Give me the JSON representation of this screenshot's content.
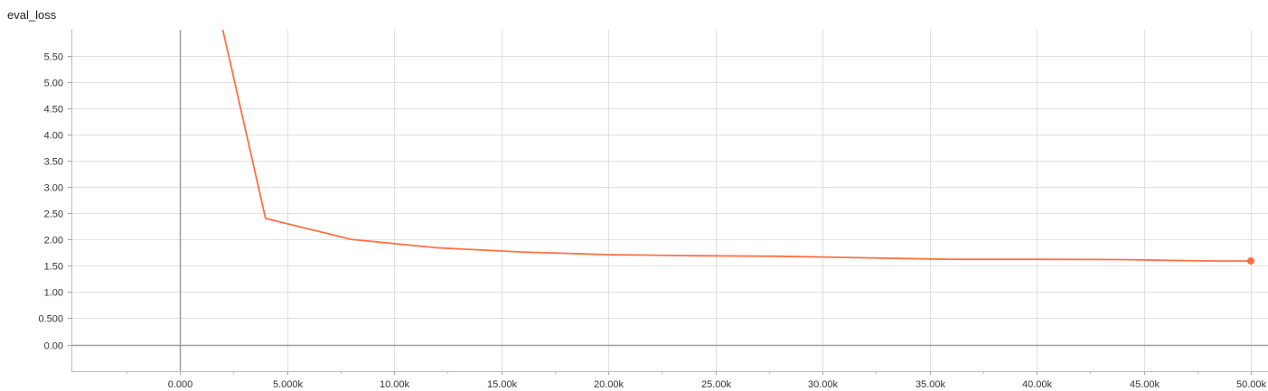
{
  "chart_data": {
    "type": "line",
    "title": "eval_loss",
    "xlabel": "",
    "ylabel": "",
    "xlim": [
      -5000,
      50500
    ],
    "ylim": [
      -0.5,
      6.0
    ],
    "x_ticks": [
      0,
      5000,
      10000,
      15000,
      20000,
      25000,
      30000,
      35000,
      40000,
      45000,
      50000
    ],
    "x_tick_labels": [
      "0.000",
      "5.000k",
      "10.00k",
      "15.00k",
      "20.00k",
      "25.00k",
      "30.00k",
      "35.00k",
      "40.00k",
      "45.00k",
      "50.00k"
    ],
    "y_ticks": [
      0,
      0.5,
      1.0,
      1.5,
      2.0,
      2.5,
      3.0,
      3.5,
      4.0,
      4.5,
      5.0,
      5.5
    ],
    "y_tick_labels": [
      "0.00",
      "0.500",
      "1.00",
      "1.50",
      "2.00",
      "2.50",
      "3.00",
      "3.50",
      "4.00",
      "4.50",
      "5.00",
      "5.50"
    ],
    "grid": true,
    "series": [
      {
        "color": "#ff7043",
        "x": [
          2000,
          4000,
          8000,
          12000,
          16000,
          20000,
          24000,
          28000,
          32000,
          36000,
          40000,
          44000,
          48000,
          50000
        ],
        "y": [
          6.0,
          2.4,
          2.0,
          1.84,
          1.76,
          1.71,
          1.69,
          1.68,
          1.65,
          1.62,
          1.62,
          1.615,
          1.59,
          1.59
        ]
      }
    ]
  }
}
